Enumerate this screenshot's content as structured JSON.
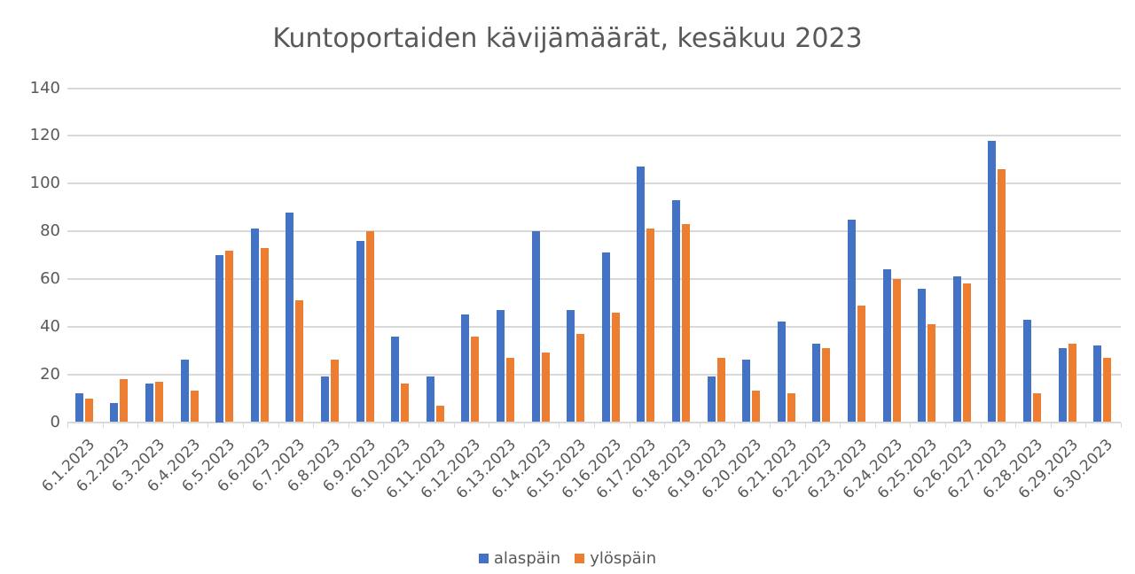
{
  "chart_data": {
    "type": "bar",
    "title": "Kuntoportaiden kävijämäärät, kesäkuu 2023",
    "xlabel": "",
    "ylabel": "",
    "ylim": [
      0,
      140
    ],
    "yticks": [
      0,
      20,
      40,
      60,
      80,
      100,
      120,
      140
    ],
    "grid": true,
    "legend_position": "bottom",
    "categories": [
      "6.1.2023",
      "6.2.2023",
      "6.3.2023",
      "6.4.2023",
      "6.5.2023",
      "6.6.2023",
      "6.7.2023",
      "6.8.2023",
      "6.9.2023",
      "6.10.2023",
      "6.11.2023",
      "6.12.2023",
      "6.13.2023",
      "6.14.2023",
      "6.15.2023",
      "6.16.2023",
      "6.17.2023",
      "6.18.2023",
      "6.19.2023",
      "6.20.2023",
      "6.21.2023",
      "6.22.2023",
      "6.23.2023",
      "6.24.2023",
      "6.25.2023",
      "6.26.2023",
      "6.27.2023",
      "6.28.2023",
      "6.29.2023",
      "6.30.2023"
    ],
    "series": [
      {
        "name": "alaspäin",
        "color": "#4472C4",
        "values": [
          12,
          8,
          16,
          26,
          70,
          81,
          88,
          19,
          76,
          36,
          19,
          45,
          47,
          80,
          47,
          71,
          107,
          93,
          19,
          26,
          42,
          33,
          85,
          64,
          56,
          61,
          118,
          43,
          31,
          32
        ]
      },
      {
        "name": "ylöspäin",
        "color": "#ED7D31",
        "values": [
          10,
          18,
          17,
          13,
          72,
          73,
          51,
          26,
          80,
          16,
          7,
          36,
          27,
          29,
          37,
          46,
          81,
          83,
          27,
          13,
          12,
          31,
          49,
          60,
          41,
          58,
          106,
          12,
          33,
          27
        ]
      }
    ]
  }
}
